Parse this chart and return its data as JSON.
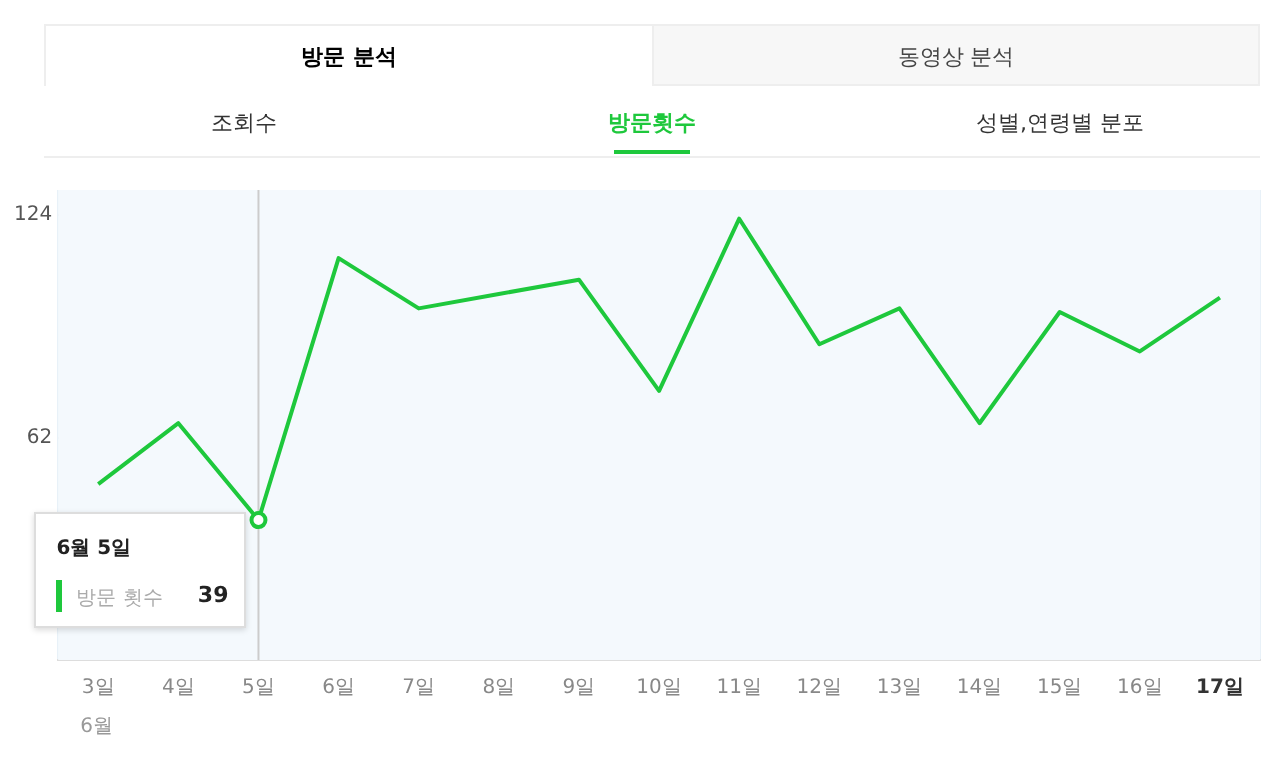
{
  "chart_data": {
    "type": "line",
    "title": "방문횟수",
    "categories": [
      "3일",
      "4일",
      "5일",
      "6일",
      "7일",
      "8일",
      "9일",
      "10일",
      "11일",
      "12일",
      "13일",
      "14일",
      "15일",
      "16일",
      "17일"
    ],
    "series": [
      {
        "name": "방문 횟수",
        "color": "#1ec83c",
        "values": [
          49,
          66,
          39,
          112,
          98,
          102,
          106,
          75,
          123,
          88,
          98,
          66,
          97,
          86,
          101
        ],
        "value_labels": [
          null,
          null,
          "39",
          null,
          null,
          null,
          null,
          null,
          null,
          null,
          null,
          null,
          null,
          null,
          null
        ]
      }
    ],
    "ylim": [
      0,
      131
    ],
    "yticks": [
      62,
      124
    ],
    "grid": true,
    "legend": "bottom",
    "marker": "none",
    "line_style": "solid",
    "annotations": [
      "방문 분석",
      "동영상 분석",
      "조회수",
      "성별,연령별 분포",
      "6월",
      "6월 5일"
    ]
  }
}
